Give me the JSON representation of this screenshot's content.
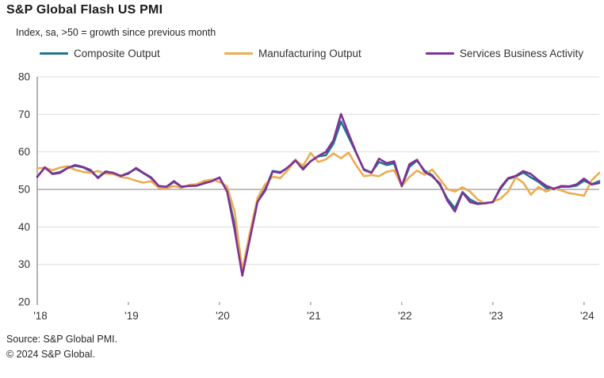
{
  "header": {
    "title": "S&P Global Flash US PMI",
    "subtitle": "Index, sa, >50 = growth since previous month"
  },
  "source": {
    "line1": "Source: S&P Global PMI.",
    "line2": "© 2024 S&P Global."
  },
  "chart_data": {
    "type": "line",
    "title": "S&P Global Flash US PMI",
    "subtitle": "Index, sa, >50 = growth since previous month",
    "xlabel": "",
    "ylabel": "",
    "ylim": [
      20,
      80
    ],
    "y_ticks": [
      20,
      30,
      40,
      50,
      60,
      70,
      80
    ],
    "reference_line": 50,
    "grid": "horizontal-light",
    "legend_position": "top",
    "x_frequency": "monthly",
    "x_start": "2018-01",
    "x_end": "2024-03",
    "x_tick_labels": [
      "'18",
      "'19",
      "'20",
      "'21",
      "'22",
      "'23",
      "'24"
    ],
    "x_tick_month_indices": [
      0,
      12,
      24,
      36,
      48,
      60,
      72
    ],
    "series": [
      {
        "name": "Composite Output",
        "color": "#21758E",
        "values": [
          53.4,
          55.8,
          54.2,
          54.6,
          55.7,
          56.3,
          55.9,
          54.9,
          53.2,
          54.8,
          54.4,
          53.6,
          54.4,
          55.5,
          54.3,
          53.0,
          50.9,
          50.6,
          52.0,
          50.7,
          51.0,
          51.2,
          51.9,
          52.4,
          53.1,
          49.6,
          40.5,
          27.4,
          37.0,
          46.8,
          50.0,
          54.9,
          54.6,
          55.7,
          57.9,
          55.6,
          57.5,
          58.8,
          59.1,
          62.2,
          68.1,
          63.9,
          59.7,
          55.4,
          54.5,
          57.3,
          56.5,
          56.9,
          50.8,
          56.0,
          57.7,
          55.0,
          53.8,
          51.2,
          47.5,
          45.0,
          49.3,
          47.3,
          46.3,
          46.4,
          46.6,
          50.2,
          52.8,
          53.4,
          54.5,
          53.2,
          52.0,
          50.4,
          50.0,
          50.7,
          50.7,
          51.0,
          52.3,
          51.4,
          52.2
        ]
      },
      {
        "name": "Manufacturing Output",
        "color": "#ECAC53",
        "values": [
          55.6,
          55.8,
          55.1,
          55.8,
          56.2,
          55.2,
          54.7,
          54.4,
          54.9,
          54.2,
          54.1,
          53.3,
          53.0,
          52.3,
          51.8,
          52.2,
          50.4,
          50.3,
          50.9,
          50.4,
          51.2,
          51.4,
          52.3,
          52.6,
          52.0,
          50.8,
          44.0,
          28.5,
          38.5,
          47.7,
          51.3,
          53.4,
          53.0,
          55.2,
          57.8,
          56.3,
          59.7,
          57.3,
          58.0,
          59.6,
          58.3,
          59.8,
          56.4,
          53.5,
          53.8,
          53.5,
          54.7,
          55.1,
          50.9,
          53.3,
          55.0,
          53.9,
          55.3,
          52.8,
          50.1,
          49.4,
          50.6,
          49.4,
          47.3,
          46.2,
          46.8,
          47.5,
          49.4,
          53.2,
          51.8,
          48.6,
          50.7,
          49.4,
          50.3,
          49.7,
          49.0,
          48.7,
          48.3,
          52.4,
          54.4
        ]
      },
      {
        "name": "Services Business Activity",
        "color": "#7F3293",
        "values": [
          53.3,
          55.9,
          54.1,
          54.4,
          55.7,
          56.5,
          56.0,
          55.2,
          53.0,
          54.7,
          54.4,
          53.6,
          54.2,
          55.7,
          54.4,
          53.2,
          50.9,
          50.7,
          52.2,
          50.7,
          50.9,
          51.0,
          51.6,
          52.2,
          53.2,
          49.4,
          39.1,
          27.0,
          36.9,
          46.7,
          49.6,
          54.8,
          54.4,
          55.9,
          57.7,
          55.3,
          57.5,
          58.9,
          60.0,
          63.1,
          70.1,
          64.8,
          59.8,
          55.2,
          54.4,
          58.2,
          57.0,
          57.5,
          50.9,
          56.7,
          57.9,
          54.7,
          53.5,
          51.6,
          47.0,
          44.1,
          49.2,
          46.6,
          46.1,
          46.3,
          46.6,
          50.5,
          53.0,
          53.6,
          54.9,
          54.1,
          52.4,
          51.0,
          50.2,
          50.9,
          50.8,
          51.3,
          52.9,
          51.3,
          51.7
        ]
      }
    ]
  }
}
